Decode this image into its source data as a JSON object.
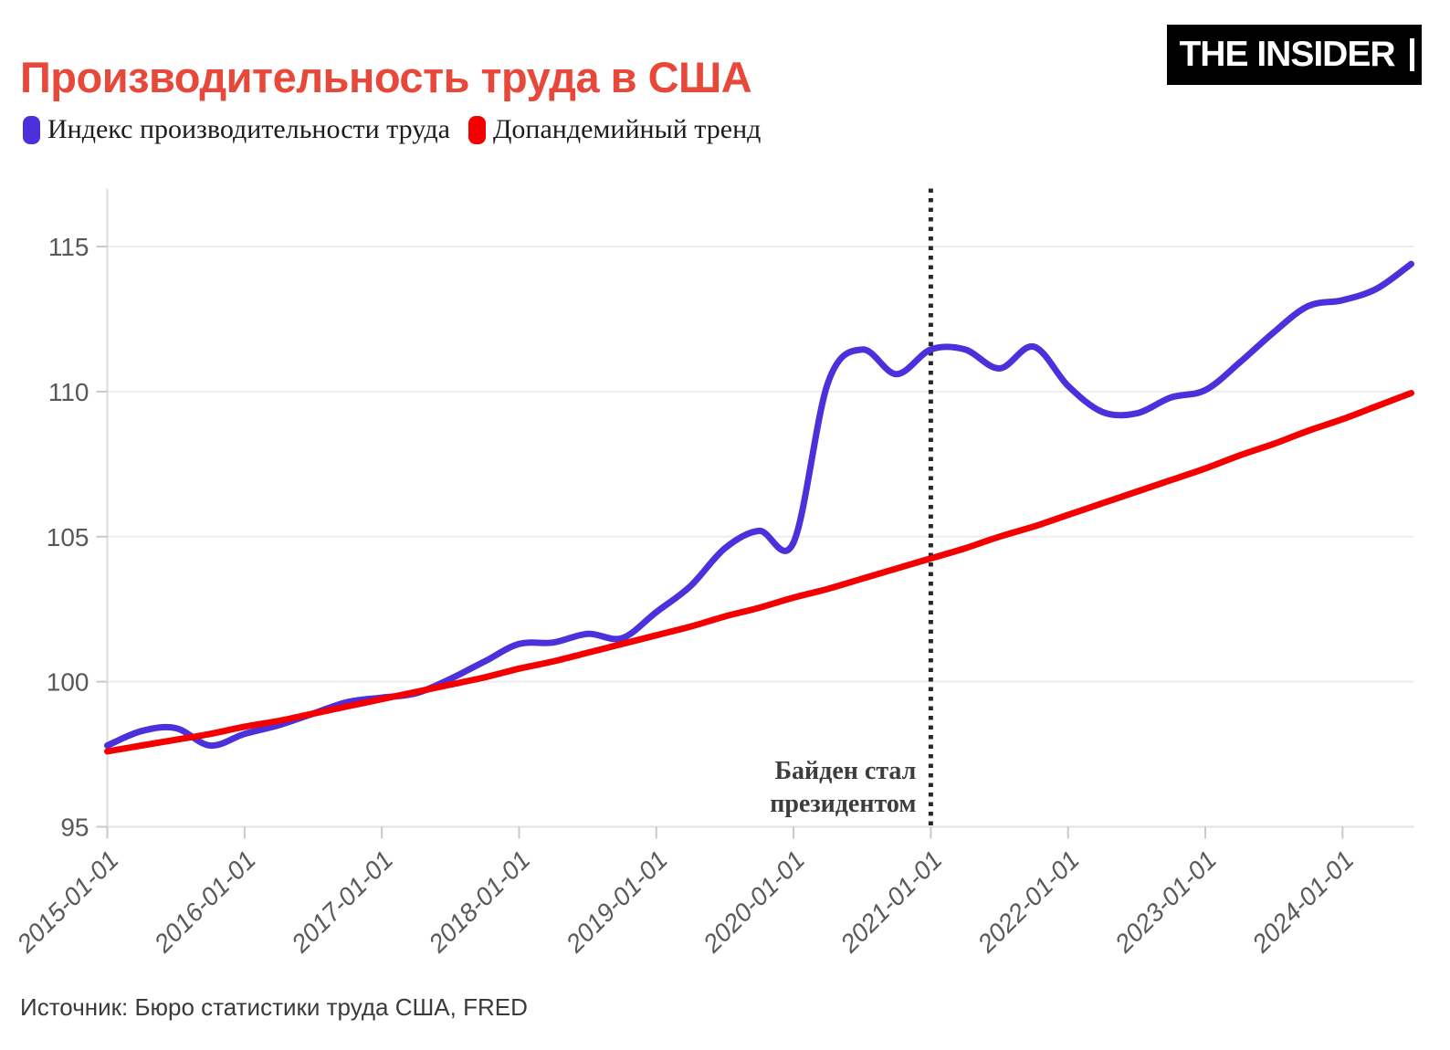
{
  "header": {
    "title": "Производительность труда в США",
    "title_color": "#e8483a",
    "logo_text": "THE INSIDER"
  },
  "legend": {
    "items": [
      {
        "label": "Индекс производительности труда",
        "color": "#4b31db"
      },
      {
        "label": "Допандемийный тренд",
        "color": "#f40000"
      }
    ]
  },
  "footer": {
    "source": "Источник: Бюро статистики труда США, FRED"
  },
  "chart_data": {
    "type": "line",
    "title": "Производительность труда в США",
    "xlabel": "",
    "ylabel": "",
    "grid": "horizontal",
    "legend_position": "top-left",
    "xlim": [
      2015.0,
      2024.5
    ],
    "ylim": [
      95,
      117
    ],
    "y_ticks": [
      95,
      100,
      105,
      110,
      115
    ],
    "x_tick_years": [
      2015,
      2016,
      2017,
      2018,
      2019,
      2020,
      2021,
      2022,
      2023,
      2024
    ],
    "x_tick_labels": [
      "2015-01-01",
      "2016-01-01",
      "2017-01-01",
      "2018-01-01",
      "2019-01-01",
      "2020-01-01",
      "2021-01-01",
      "2022-01-01",
      "2023-01-01",
      "2024-01-01"
    ],
    "x": [
      2015.0,
      2015.25,
      2015.5,
      2015.75,
      2016.0,
      2016.25,
      2016.5,
      2016.75,
      2017.0,
      2017.25,
      2017.5,
      2017.75,
      2018.0,
      2018.25,
      2018.5,
      2018.75,
      2019.0,
      2019.25,
      2019.5,
      2019.75,
      2020.0,
      2020.25,
      2020.5,
      2020.75,
      2021.0,
      2021.25,
      2021.5,
      2021.75,
      2022.0,
      2022.25,
      2022.5,
      2022.75,
      2023.0,
      2023.25,
      2023.5,
      2023.75,
      2024.0,
      2024.25,
      2024.5
    ],
    "series": [
      {
        "name": "Индекс производительности труда",
        "color": "#4b31db",
        "stroke_width": 7,
        "values": [
          97.8,
          98.3,
          98.4,
          97.8,
          98.2,
          98.5,
          98.9,
          99.3,
          99.45,
          99.6,
          100.1,
          100.7,
          101.3,
          101.35,
          101.65,
          101.5,
          102.4,
          103.3,
          104.6,
          105.2,
          104.8,
          110.3,
          111.45,
          110.6,
          111.45,
          111.45,
          110.8,
          111.55,
          110.2,
          109.3,
          109.25,
          109.8,
          110.05,
          111.0,
          112.05,
          112.95,
          113.15,
          113.55,
          114.4
        ]
      },
      {
        "name": "Допандемийный тренд",
        "color": "#f40000",
        "stroke_width": 7,
        "values": [
          97.6,
          97.8,
          98.0,
          98.2,
          98.45,
          98.65,
          98.9,
          99.15,
          99.4,
          99.65,
          99.9,
          100.15,
          100.45,
          100.7,
          101.0,
          101.3,
          101.6,
          101.9,
          102.25,
          102.55,
          102.9,
          103.2,
          103.55,
          103.9,
          104.25,
          104.6,
          105.0,
          105.35,
          105.75,
          106.15,
          106.55,
          106.95,
          107.35,
          107.8,
          108.2,
          108.65,
          109.05,
          109.5,
          109.95
        ]
      }
    ],
    "vline": {
      "x": 2021.0,
      "style": "dotted",
      "color": "#282828",
      "label_lines": [
        "Байден стал",
        "президентом"
      ]
    }
  }
}
